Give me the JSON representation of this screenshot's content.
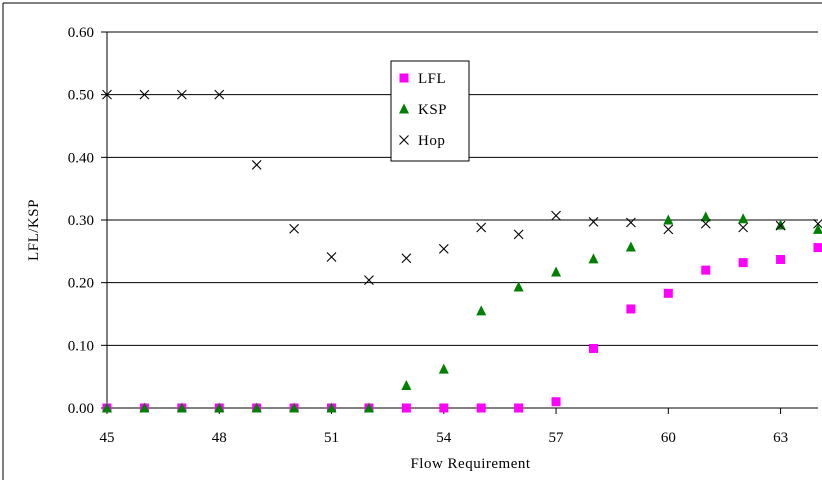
{
  "chart_data": {
    "type": "scatter",
    "title": "",
    "xlabel": "Flow Requirement",
    "ylabel": "LFL/KSP",
    "xlim": [
      45,
      64
    ],
    "ylim": [
      0,
      0.6
    ],
    "x_ticks": [
      "45",
      "48",
      "51",
      "54",
      "57",
      "60",
      "63"
    ],
    "y_ticks": [
      "0.00",
      "0.10",
      "0.20",
      "0.30",
      "0.40",
      "0.50",
      "0.60"
    ],
    "grid": "horizontal",
    "legend_position": "top-center",
    "series": [
      {
        "name": "LFL",
        "marker": "square",
        "color": "#ff00ff",
        "x": [
          45,
          46,
          47,
          48,
          49,
          50,
          51,
          52,
          53,
          54,
          55,
          56,
          57,
          58,
          59,
          60,
          61,
          62,
          63,
          64
        ],
        "y": [
          0,
          0,
          0,
          0,
          0,
          0,
          0,
          0,
          0,
          0,
          0,
          0,
          0.01,
          0.095,
          0.158,
          0.183,
          0.22,
          0.232,
          0.237,
          0.256
        ]
      },
      {
        "name": "KSP",
        "marker": "triangle",
        "color": "#008000",
        "x": [
          45,
          46,
          47,
          48,
          49,
          50,
          51,
          52,
          53,
          54,
          55,
          56,
          57,
          58,
          59,
          60,
          61,
          62,
          63,
          64
        ],
        "y": [
          0,
          0,
          0,
          0,
          0,
          0,
          0,
          0,
          0.036,
          0.062,
          0.155,
          0.193,
          0.217,
          0.238,
          0.257,
          0.3,
          0.305,
          0.302,
          0.292,
          0.285
        ]
      },
      {
        "name": "Hop",
        "marker": "x",
        "color": "#000000",
        "x": [
          45,
          46,
          47,
          48,
          49,
          50,
          51,
          52,
          53,
          54,
          55,
          56,
          57,
          58,
          59,
          60,
          61,
          62,
          63,
          64
        ],
        "y": [
          0.5,
          0.5,
          0.5,
          0.5,
          0.388,
          0.286,
          0.241,
          0.204,
          0.239,
          0.254,
          0.288,
          0.277,
          0.307,
          0.297,
          0.296,
          0.285,
          0.294,
          0.288,
          0.291,
          0.294
        ]
      }
    ]
  }
}
